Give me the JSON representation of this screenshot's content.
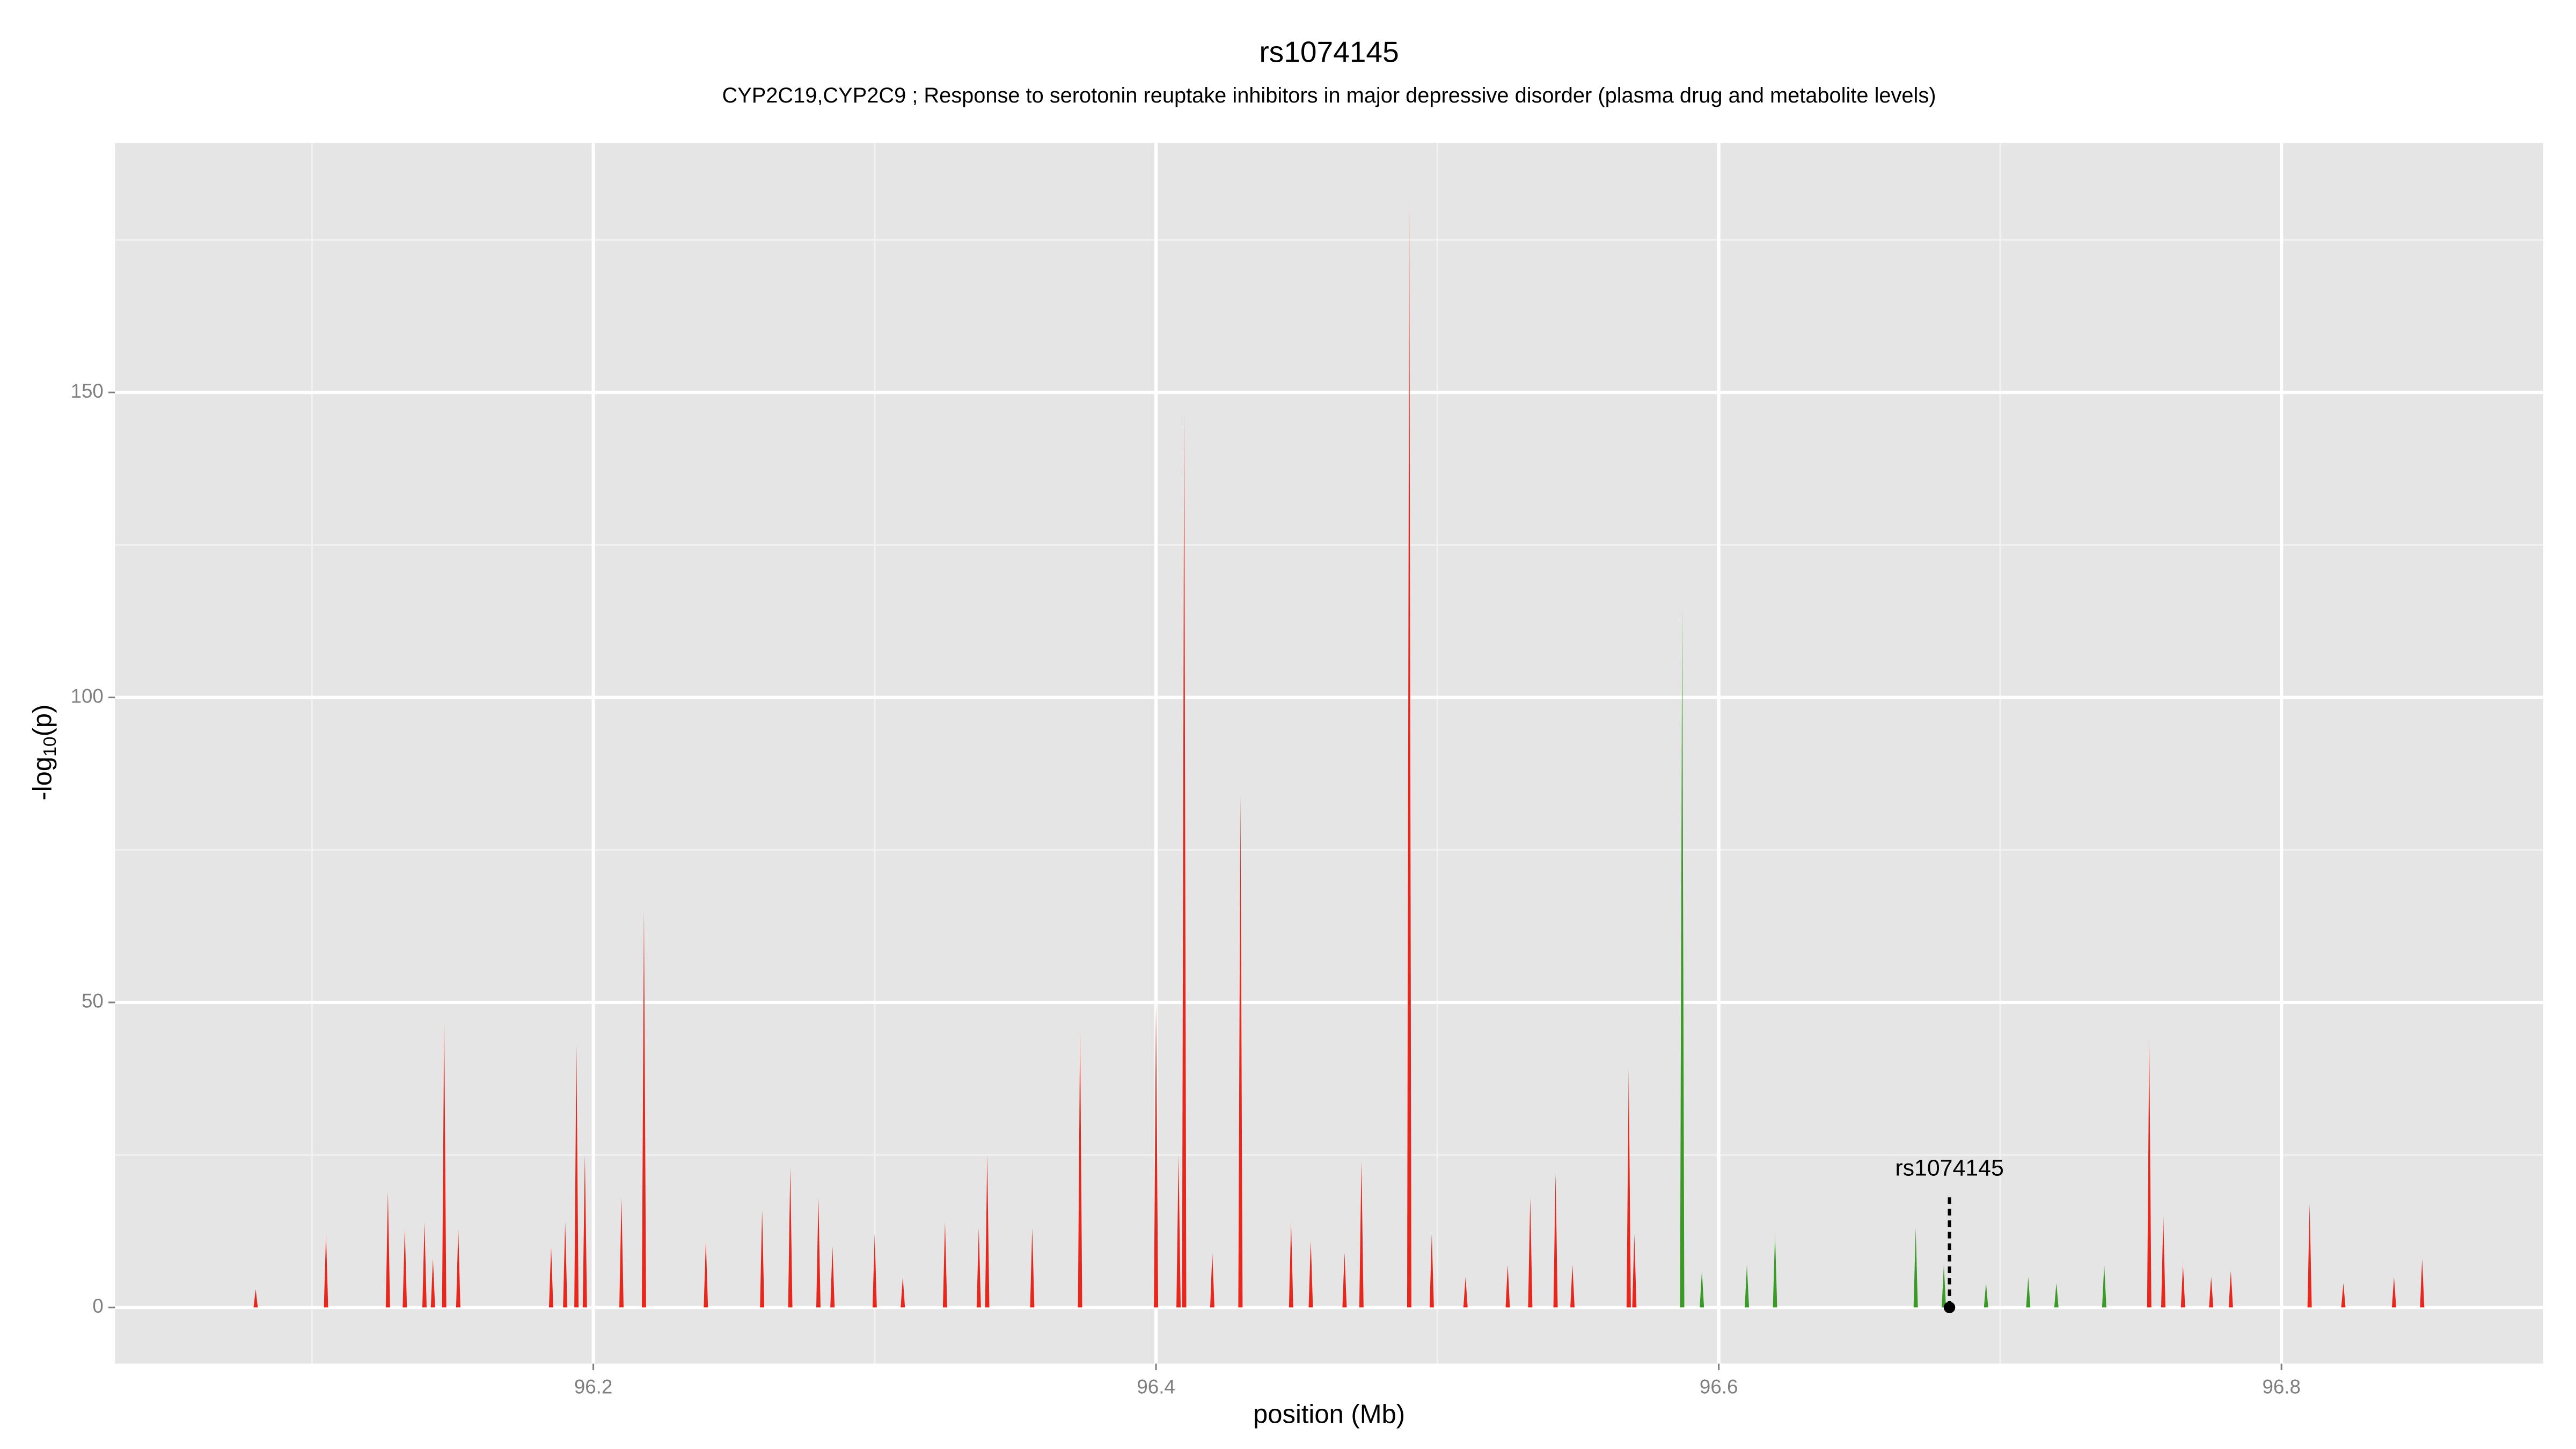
{
  "chart_data": {
    "type": "spike",
    "title": "rs1074145",
    "subtitle": "CYP2C19,CYP2C9 ; Response to serotonin reuptake inhibitors in major depressive disorder (plasma drug and metabolite levels)",
    "xlabel": "position (Mb)",
    "ylabel": {
      "pre": "-log",
      "sub": "10",
      "post": "(p)"
    },
    "xlim": [
      96.03,
      96.893
    ],
    "ylim": [
      -9.2,
      190.9
    ],
    "xticks": [
      96.2,
      96.4,
      96.6,
      96.8
    ],
    "yticks": [
      0,
      50,
      100,
      150
    ],
    "minor_xticks": [
      96.1,
      96.3,
      96.5,
      96.7
    ],
    "minor_yticks": [
      25,
      75,
      125,
      175
    ],
    "grid": true,
    "series": [
      {
        "color": "#e8261b",
        "x": [
          96.08,
          96.105,
          96.127,
          96.133,
          96.14,
          96.143,
          96.147,
          96.152,
          96.185,
          96.19,
          96.194,
          96.197,
          96.21,
          96.218,
          96.24,
          96.26,
          96.27,
          96.28,
          96.285,
          96.3,
          96.31,
          96.325,
          96.337,
          96.34,
          96.356,
          96.373,
          96.4,
          96.408,
          96.41,
          96.42,
          96.43,
          96.448,
          96.455,
          96.467,
          96.473,
          96.49,
          96.498,
          96.51,
          96.525,
          96.533,
          96.542,
          96.548,
          96.568,
          96.57,
          96.753,
          96.758,
          96.765,
          96.775,
          96.782,
          96.81,
          96.822,
          96.84,
          96.85
        ],
        "values": [
          3,
          12,
          19,
          13,
          14,
          8,
          47,
          13,
          10,
          14,
          43,
          25,
          18,
          65,
          11,
          16,
          23,
          18,
          10,
          12,
          5,
          14,
          13,
          25,
          13,
          46,
          50,
          25,
          147,
          9,
          84,
          14,
          11,
          9,
          24,
          182,
          12,
          5,
          7,
          18,
          22,
          7,
          39,
          12,
          44,
          15,
          7,
          5,
          6,
          17,
          4,
          5,
          8
        ]
      },
      {
        "color": "#3a9a26",
        "x": [
          96.587,
          96.594,
          96.61,
          96.62,
          96.67,
          96.68,
          96.695,
          96.71,
          96.72,
          96.737
        ],
        "values": [
          115,
          6,
          7,
          12,
          13,
          7,
          4,
          5,
          4,
          7
        ]
      }
    ],
    "annotation": {
      "label": "rs1074145",
      "x": 96.682,
      "y": 0
    }
  }
}
